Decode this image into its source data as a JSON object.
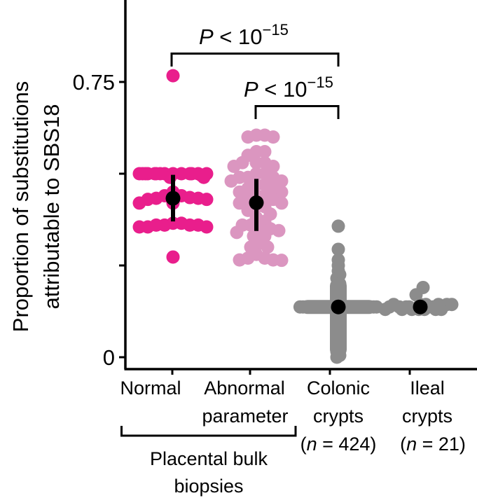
{
  "chart_data": {
    "type": "scatter",
    "subtype": "beeswarm",
    "title": "",
    "ylabel_lines": [
      "Proportion of substitutions",
      "attributable to SBS18"
    ],
    "ylim": [
      0,
      0.97
    ],
    "yticks": [
      0,
      0.25,
      0.5,
      0.75
    ],
    "ytick_labels": [
      "0",
      "",
      "",
      "0.75"
    ],
    "grid": false,
    "categories": [
      {
        "id": "normal",
        "label_lines": [
          "Normal"
        ],
        "color": "#E91E8C"
      },
      {
        "id": "abnormal",
        "label_lines": [
          "Abnormal",
          "parameter"
        ],
        "color": "#DB96C0"
      },
      {
        "id": "colonic",
        "label_lines": [
          "Colonic",
          "crypts",
          "(n = 424)"
        ],
        "n_prefix": "(",
        "n_italic": "n",
        "n_suffix": " = 424)",
        "color": "#8C8C8C"
      },
      {
        "id": "ileal",
        "label_lines": [
          "Ileal",
          "crypts",
          "(n = 21)"
        ],
        "n_prefix": "(",
        "n_italic": "n",
        "n_suffix": " = 21)",
        "color": "#8C8C8C"
      }
    ],
    "label_rows": {
      "row1": [
        "Normal",
        "Abnormal",
        "Colonic",
        "Ileal"
      ],
      "row2": [
        "",
        "parameter",
        "crypts",
        "crypts"
      ],
      "row3_n": [
        "",
        "",
        "424",
        "21"
      ]
    },
    "group_bracket": {
      "label_lines": [
        "Placental bulk",
        "biopsies"
      ],
      "spans": [
        "normal",
        "abnormal"
      ]
    },
    "series": [
      {
        "name": "Normal",
        "values": [
          0.767,
          0.5,
          0.5,
          0.5,
          0.5,
          0.5,
          0.5,
          0.5,
          0.5,
          0.5,
          0.5,
          0.5,
          0.5,
          0.5,
          0.5,
          0.495,
          0.49,
          0.49,
          0.45,
          0.44,
          0.44,
          0.435,
          0.433,
          0.433,
          0.43,
          0.43,
          0.42,
          0.42,
          0.365,
          0.365,
          0.36,
          0.36,
          0.36,
          0.36,
          0.355,
          0.355,
          0.355,
          0.273
        ],
        "mean": 0.433,
        "err_low": 0.37,
        "err_high": 0.497
      },
      {
        "name": "Abnormal parameter",
        "values": [
          0.605,
          0.605,
          0.6,
          0.6,
          0.56,
          0.56,
          0.55,
          0.53,
          0.53,
          0.53,
          0.52,
          0.52,
          0.5,
          0.5,
          0.49,
          0.49,
          0.49,
          0.48,
          0.48,
          0.47,
          0.47,
          0.46,
          0.46,
          0.45,
          0.45,
          0.44,
          0.44,
          0.43,
          0.43,
          0.42,
          0.42,
          0.41,
          0.41,
          0.4,
          0.39,
          0.38,
          0.37,
          0.36,
          0.36,
          0.35,
          0.35,
          0.345,
          0.34,
          0.33,
          0.33,
          0.31,
          0.3,
          0.3,
          0.28,
          0.27,
          0.27,
          0.265,
          0.265,
          0.264
        ],
        "mean": 0.421,
        "err_low": 0.344,
        "err_high": 0.486
      },
      {
        "name": "Colonic crypts",
        "n": 424,
        "values_sample": [
          0.357,
          0.294,
          0.265,
          0.25,
          0.235,
          0.225,
          0.215,
          0.208,
          0.2,
          0.195,
          0.19,
          0.185,
          0.18,
          0.175,
          0.17,
          0.165,
          0.16,
          0.155,
          0.15,
          0.145,
          0.14,
          0.137,
          0.137,
          0.137,
          0.137,
          0.137,
          0.137,
          0.137,
          0.137,
          0.137,
          0.137,
          0.137,
          0.137,
          0.137,
          0.137,
          0.137,
          0.137,
          0.137,
          0.137,
          0.137,
          0.137,
          0.137,
          0.137,
          0.137,
          0.137,
          0.137,
          0.137,
          0.137,
          0.135,
          0.13,
          0.125,
          0.12,
          0.115,
          0.11,
          0.105,
          0.1,
          0.095,
          0.09,
          0.085,
          0.08,
          0.075,
          0.07,
          0.065,
          0.06,
          0.055,
          0.05,
          0.045,
          0.04,
          0.035,
          0.03,
          0.025,
          0.02,
          0.015,
          0.01,
          0.005,
          0.0
        ],
        "mean": 0.137,
        "err_low": 0.137,
        "err_high": 0.137
      },
      {
        "name": "Ileal crypts",
        "n": 21,
        "values": [
          0.19,
          0.17,
          0.155,
          0.145,
          0.14,
          0.14,
          0.138,
          0.137,
          0.137,
          0.137,
          0.137,
          0.137,
          0.136,
          0.135,
          0.133,
          0.13,
          0.128,
          0.127,
          0.126,
          0.125,
          0.125
        ],
        "mean": 0.137,
        "err_low": 0.137,
        "err_high": 0.137
      }
    ],
    "annotations": [
      {
        "text_prefix": "P",
        "text_mid": " < 10",
        "text_exp": "−15",
        "from": "normal",
        "to": "colonic"
      },
      {
        "text_prefix": "P",
        "text_mid": " < 10",
        "text_exp": "−15",
        "from": "abnormal",
        "to": "colonic"
      }
    ]
  }
}
